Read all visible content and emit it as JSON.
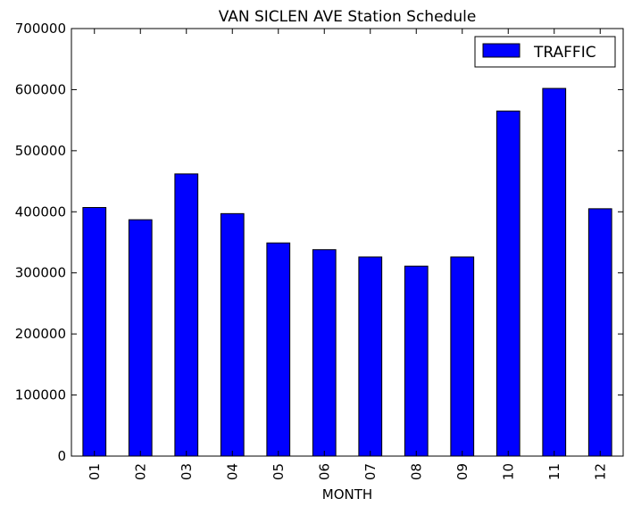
{
  "chart_data": {
    "type": "bar",
    "title": "VAN SICLEN AVE Station Schedule",
    "xlabel": "MONTH",
    "ylabel": "",
    "categories": [
      "01",
      "02",
      "03",
      "04",
      "05",
      "06",
      "07",
      "08",
      "09",
      "10",
      "11",
      "12"
    ],
    "series": [
      {
        "name": "TRAFFIC",
        "color": "#0000ff",
        "values": [
          407000,
          387000,
          462000,
          397000,
          349000,
          338000,
          326000,
          311000,
          326000,
          565000,
          602000,
          405000
        ]
      }
    ],
    "ylim": [
      0,
      700000
    ],
    "yticks": [
      "0",
      "100000",
      "200000",
      "300000",
      "400000",
      "500000",
      "600000",
      "700000"
    ],
    "grid": false,
    "legend_position": "top-right"
  }
}
